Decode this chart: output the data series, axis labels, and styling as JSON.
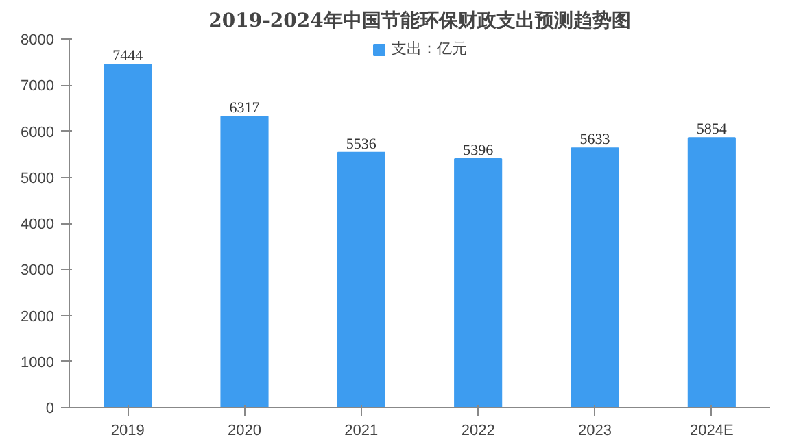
{
  "chart_data": {
    "type": "bar",
    "title": "2019-2024年中国节能环保财政支出预测趋势图",
    "categories": [
      "2019",
      "2020",
      "2021",
      "2022",
      "2023",
      "2024E"
    ],
    "series": [
      {
        "name": "支出：亿元",
        "color": "#3d9cf0",
        "values": [
          7444,
          6317,
          5536,
          5396,
          5633,
          5854
        ]
      }
    ],
    "ylim": [
      0,
      8000
    ],
    "yticks": [
      0,
      1000,
      2000,
      3000,
      4000,
      5000,
      6000,
      7000,
      8000
    ],
    "data_labels": true,
    "legend": "top",
    "grid": false
  }
}
